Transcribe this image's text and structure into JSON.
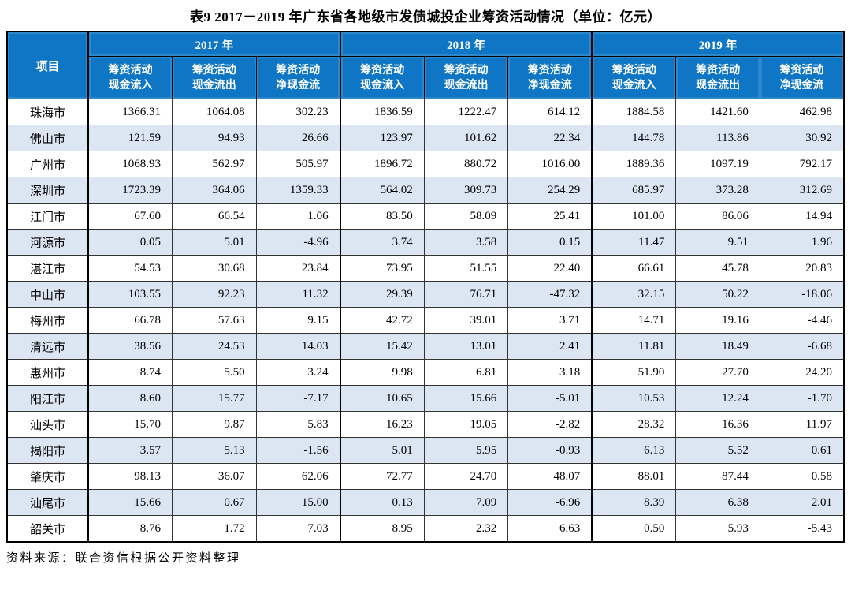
{
  "title": "表9  2017－2019 年广东省各地级市发债城投企业筹资活动情况（单位：亿元）",
  "source_note": "资料来源：联合资信根据公开资料整理",
  "colors": {
    "header_bg": "#0E76C4",
    "header_text": "#FFFFFF",
    "row_alt_bg": "#DCE6F3",
    "border": "#000000"
  },
  "table": {
    "corner_label": "项目",
    "year_groups": [
      {
        "label": "2017 年",
        "columns": [
          {
            "line1": "筹资活动",
            "line2": "现金流入"
          },
          {
            "line1": "筹资活动",
            "line2": "现金流出"
          },
          {
            "line1": "筹资活动",
            "line2": "净现金流"
          }
        ]
      },
      {
        "label": "2018 年",
        "columns": [
          {
            "line1": "筹资活动",
            "line2": "现金流入"
          },
          {
            "line1": "筹资活动",
            "line2": "现金流出"
          },
          {
            "line1": "筹资活动",
            "line2": "净现金流"
          }
        ]
      },
      {
        "label": "2019 年",
        "columns": [
          {
            "line1": "筹资活动",
            "line2": "现金流入"
          },
          {
            "line1": "筹资活动",
            "line2": "现金流出"
          },
          {
            "line1": "筹资活动",
            "line2": "净现金流"
          }
        ]
      }
    ],
    "rows": [
      {
        "city": "珠海市",
        "values": [
          "1366.31",
          "1064.08",
          "302.23",
          "1836.59",
          "1222.47",
          "614.12",
          "1884.58",
          "1421.60",
          "462.98"
        ]
      },
      {
        "city": "佛山市",
        "values": [
          "121.59",
          "94.93",
          "26.66",
          "123.97",
          "101.62",
          "22.34",
          "144.78",
          "113.86",
          "30.92"
        ]
      },
      {
        "city": "广州市",
        "values": [
          "1068.93",
          "562.97",
          "505.97",
          "1896.72",
          "880.72",
          "1016.00",
          "1889.36",
          "1097.19",
          "792.17"
        ]
      },
      {
        "city": "深圳市",
        "values": [
          "1723.39",
          "364.06",
          "1359.33",
          "564.02",
          "309.73",
          "254.29",
          "685.97",
          "373.28",
          "312.69"
        ]
      },
      {
        "city": "江门市",
        "values": [
          "67.60",
          "66.54",
          "1.06",
          "83.50",
          "58.09",
          "25.41",
          "101.00",
          "86.06",
          "14.94"
        ]
      },
      {
        "city": "河源市",
        "values": [
          "0.05",
          "5.01",
          "-4.96",
          "3.74",
          "3.58",
          "0.15",
          "11.47",
          "9.51",
          "1.96"
        ]
      },
      {
        "city": "湛江市",
        "values": [
          "54.53",
          "30.68",
          "23.84",
          "73.95",
          "51.55",
          "22.40",
          "66.61",
          "45.78",
          "20.83"
        ]
      },
      {
        "city": "中山市",
        "values": [
          "103.55",
          "92.23",
          "11.32",
          "29.39",
          "76.71",
          "-47.32",
          "32.15",
          "50.22",
          "-18.06"
        ]
      },
      {
        "city": "梅州市",
        "values": [
          "66.78",
          "57.63",
          "9.15",
          "42.72",
          "39.01",
          "3.71",
          "14.71",
          "19.16",
          "-4.46"
        ]
      },
      {
        "city": "清远市",
        "values": [
          "38.56",
          "24.53",
          "14.03",
          "15.42",
          "13.01",
          "2.41",
          "11.81",
          "18.49",
          "-6.68"
        ]
      },
      {
        "city": "惠州市",
        "values": [
          "8.74",
          "5.50",
          "3.24",
          "9.98",
          "6.81",
          "3.18",
          "51.90",
          "27.70",
          "24.20"
        ]
      },
      {
        "city": "阳江市",
        "values": [
          "8.60",
          "15.77",
          "-7.17",
          "10.65",
          "15.66",
          "-5.01",
          "10.53",
          "12.24",
          "-1.70"
        ]
      },
      {
        "city": "汕头市",
        "values": [
          "15.70",
          "9.87",
          "5.83",
          "16.23",
          "19.05",
          "-2.82",
          "28.32",
          "16.36",
          "11.97"
        ]
      },
      {
        "city": "揭阳市",
        "values": [
          "3.57",
          "5.13",
          "-1.56",
          "5.01",
          "5.95",
          "-0.93",
          "6.13",
          "5.52",
          "0.61"
        ]
      },
      {
        "city": "肇庆市",
        "values": [
          "98.13",
          "36.07",
          "62.06",
          "72.77",
          "24.70",
          "48.07",
          "88.01",
          "87.44",
          "0.58"
        ]
      },
      {
        "city": "汕尾市",
        "values": [
          "15.66",
          "0.67",
          "15.00",
          "0.13",
          "7.09",
          "-6.96",
          "8.39",
          "6.38",
          "2.01"
        ]
      },
      {
        "city": "韶关市",
        "values": [
          "8.76",
          "1.72",
          "7.03",
          "8.95",
          "2.32",
          "6.63",
          "0.50",
          "5.93",
          "-5.43"
        ]
      }
    ]
  }
}
